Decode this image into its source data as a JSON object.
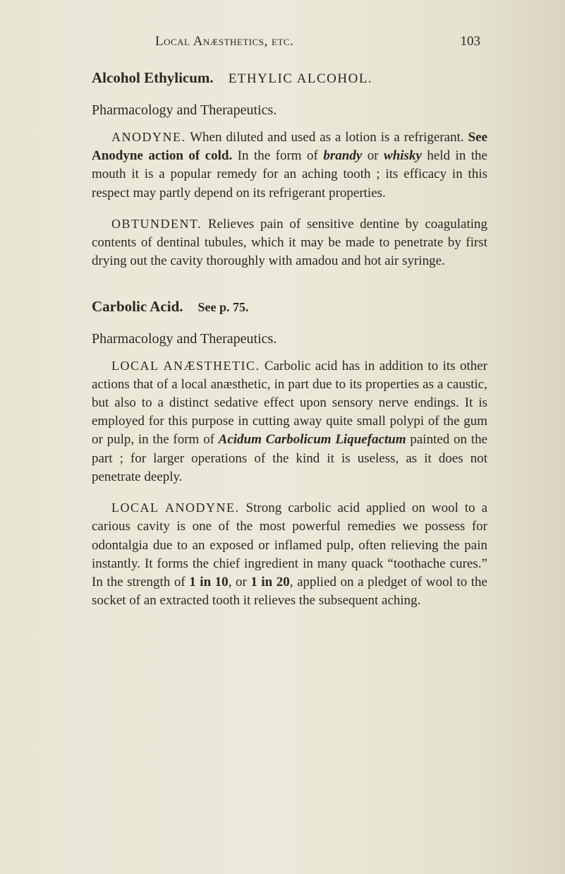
{
  "page": {
    "running_head": "Local Anæsthetics, etc.",
    "number": "103"
  },
  "entries": [
    {
      "title": "Alcohol Ethylicum.",
      "subtitle": "ETHYLIC ALCOHOL.",
      "sections": [
        {
          "heading": "Pharmacology and Therapeutics.",
          "paragraphs": [
            {
              "run_in": "ANODYNE.",
              "body_parts": [
                {
                  "t": "When diluted and used as a lotion is a refrigerant. "
                },
                {
                  "t": "See Anodyne action of cold.",
                  "bold": true
                },
                {
                  "t": " In the form of "
                },
                {
                  "t": "brandy",
                  "italic": true,
                  "bold": true
                },
                {
                  "t": " or "
                },
                {
                  "t": "whisky",
                  "italic": true,
                  "bold": true
                },
                {
                  "t": " held in the mouth it is a popular remedy for an aching tooth ; its efficacy in this respect may partly depend on its refrigerant properties."
                }
              ]
            },
            {
              "run_in": "OBTUNDENT.",
              "body_parts": [
                {
                  "t": "Relieves pain of sensitive dentine by coagulating contents of dentinal tubules, which it may be made to penetrate by first drying out the cavity thoroughly with amadou and hot air syringe."
                }
              ]
            }
          ]
        }
      ]
    },
    {
      "title": "Carbolic Acid.",
      "xref": "See p. 75.",
      "sections": [
        {
          "heading": "Pharmacology and Therapeutics.",
          "paragraphs": [
            {
              "run_in": "LOCAL ANÆSTHETIC.",
              "body_parts": [
                {
                  "t": "Carbolic acid has in addition to its other actions that of a local anæsthetic, in part due to its properties as a caustic, but also to a distinct sedative effect upon sensory nerve endings. It is employed for this purpose in cutting away quite small polypi of the gum or pulp, in the form of "
                },
                {
                  "t": "Acidum Carbolicum Liquefactum",
                  "italic": true,
                  "bold": true
                },
                {
                  "t": " painted on the part ; for larger operations of the kind it is useless, as it does not penetrate deeply."
                }
              ]
            },
            {
              "run_in": "LOCAL ANODYNE.",
              "body_parts": [
                {
                  "t": "Strong carbolic acid applied on wool to a carious cavity is one of the most powerful remedies we possess for odontalgia due to an exposed or inflamed pulp, often relieving the pain instantly. It forms the chief ingredient in many quack “toothache cures.” In the strength of "
                },
                {
                  "t": "1 in 10",
                  "bold": true
                },
                {
                  "t": ", or "
                },
                {
                  "t": "1 in 20",
                  "bold": true
                },
                {
                  "t": ", applied on a pledget of wool to the socket of an extracted tooth it relieves the subsequent aching."
                }
              ]
            }
          ]
        }
      ]
    }
  ]
}
